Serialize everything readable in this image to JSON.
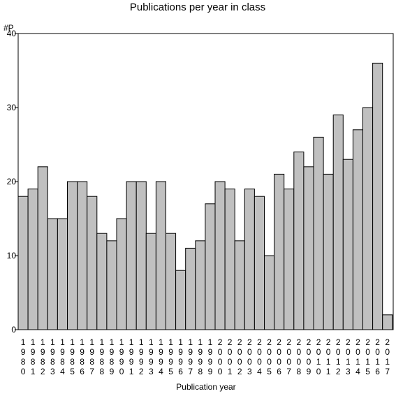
{
  "chart_data": {
    "type": "bar",
    "title": "Publications per year in class",
    "ylabel": "#P",
    "xlabel": "Publication year",
    "ylim": [
      0,
      40
    ],
    "yticks": [
      0,
      10,
      20,
      30,
      40
    ],
    "grid": false,
    "categories": [
      "1980",
      "1981",
      "1982",
      "1983",
      "1984",
      "1985",
      "1986",
      "1987",
      "1988",
      "1989",
      "1990",
      "1991",
      "1992",
      "1993",
      "1994",
      "1995",
      "1996",
      "1997",
      "1998",
      "1999",
      "2000",
      "2001",
      "2002",
      "2003",
      "2004",
      "2005",
      "2006",
      "2007",
      "2008",
      "2009",
      "2010",
      "2011",
      "2012",
      "2013",
      "2014",
      "2015",
      "2016",
      "2017"
    ],
    "values": [
      18,
      19,
      22,
      15,
      15,
      20,
      20,
      18,
      13,
      12,
      15,
      20,
      20,
      13,
      20,
      13,
      8,
      11,
      12,
      17,
      20,
      19,
      12,
      19,
      18,
      10,
      21,
      19,
      24,
      22,
      26,
      21,
      29,
      23,
      27,
      30,
      36,
      2
    ],
    "colors": {
      "bar_fill": "#c0c0c0",
      "bar_stroke": "#000000"
    }
  }
}
